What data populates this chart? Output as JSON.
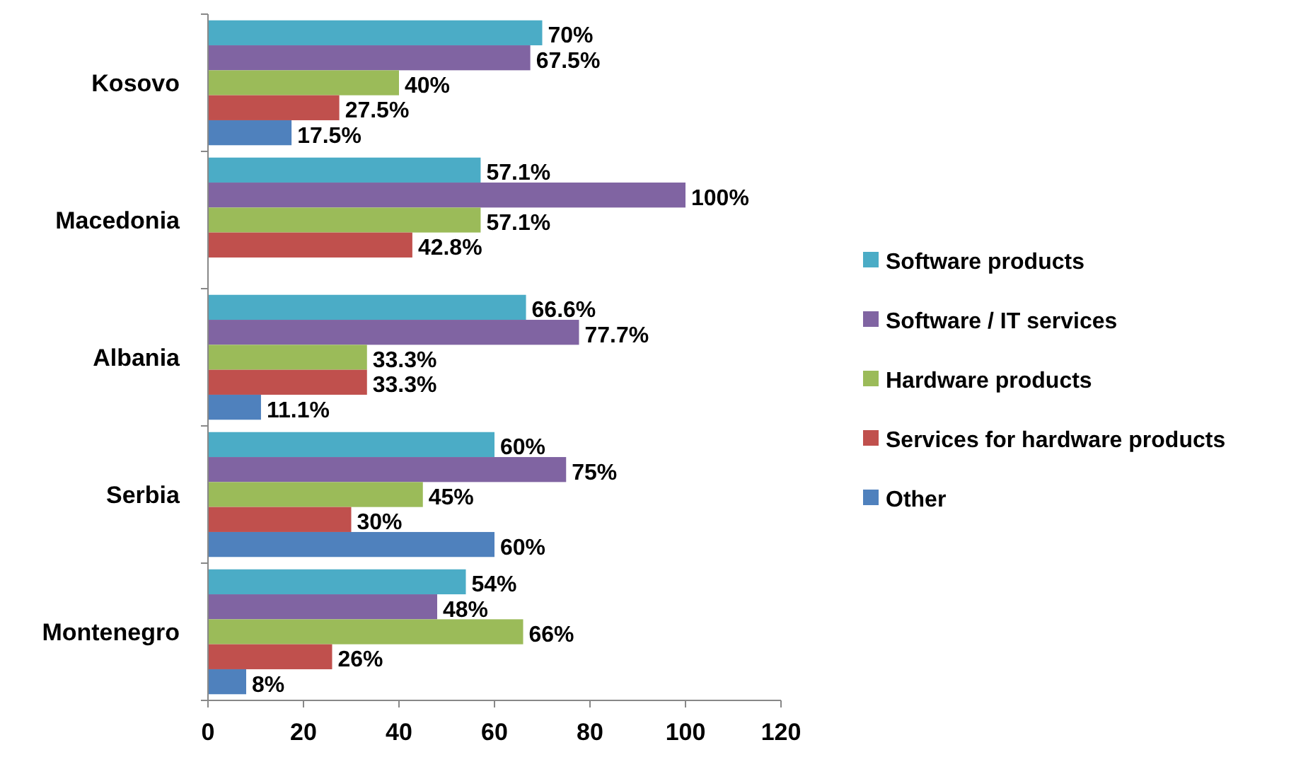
{
  "chart_data": {
    "type": "bar",
    "orientation": "horizontal",
    "categories": [
      "Kosovo",
      "Macedonia",
      "Albania",
      "Serbia",
      "Montenegro"
    ],
    "series": [
      {
        "name": "Software products",
        "color": "#4bacc6",
        "values": [
          70,
          57.1,
          66.6,
          60,
          54
        ],
        "value_labels": [
          "70%",
          "57.1%",
          "66.6%",
          "60%",
          "54%"
        ]
      },
      {
        "name": "Software / IT services",
        "color": "#8064a2",
        "values": [
          67.5,
          100,
          77.7,
          75,
          48
        ],
        "value_labels": [
          "67.5%",
          "100%",
          "77.7%",
          "75%",
          "48%"
        ]
      },
      {
        "name": "Hardware products",
        "color": "#9bbb59",
        "values": [
          40,
          57.1,
          33.3,
          45,
          66
        ],
        "value_labels": [
          "40%",
          "57.1%",
          "33.3%",
          "45%",
          "66%"
        ]
      },
      {
        "name": "Services for hardware products",
        "color": "#c0504d",
        "values": [
          27.5,
          42.8,
          33.3,
          30,
          26
        ],
        "value_labels": [
          "27.5%",
          "42.8%",
          "33.3%",
          "30%",
          "26%"
        ]
      },
      {
        "name": "Other",
        "color": "#4f81bd",
        "values": [
          17.5,
          null,
          11.1,
          60,
          8
        ],
        "value_labels": [
          "17.5%",
          null,
          "11.1%",
          "60%",
          "8%"
        ]
      }
    ],
    "xlim": [
      0,
      120
    ],
    "xticks": [
      0,
      20,
      40,
      60,
      80,
      100,
      120
    ],
    "grid": false,
    "legend": "right"
  }
}
